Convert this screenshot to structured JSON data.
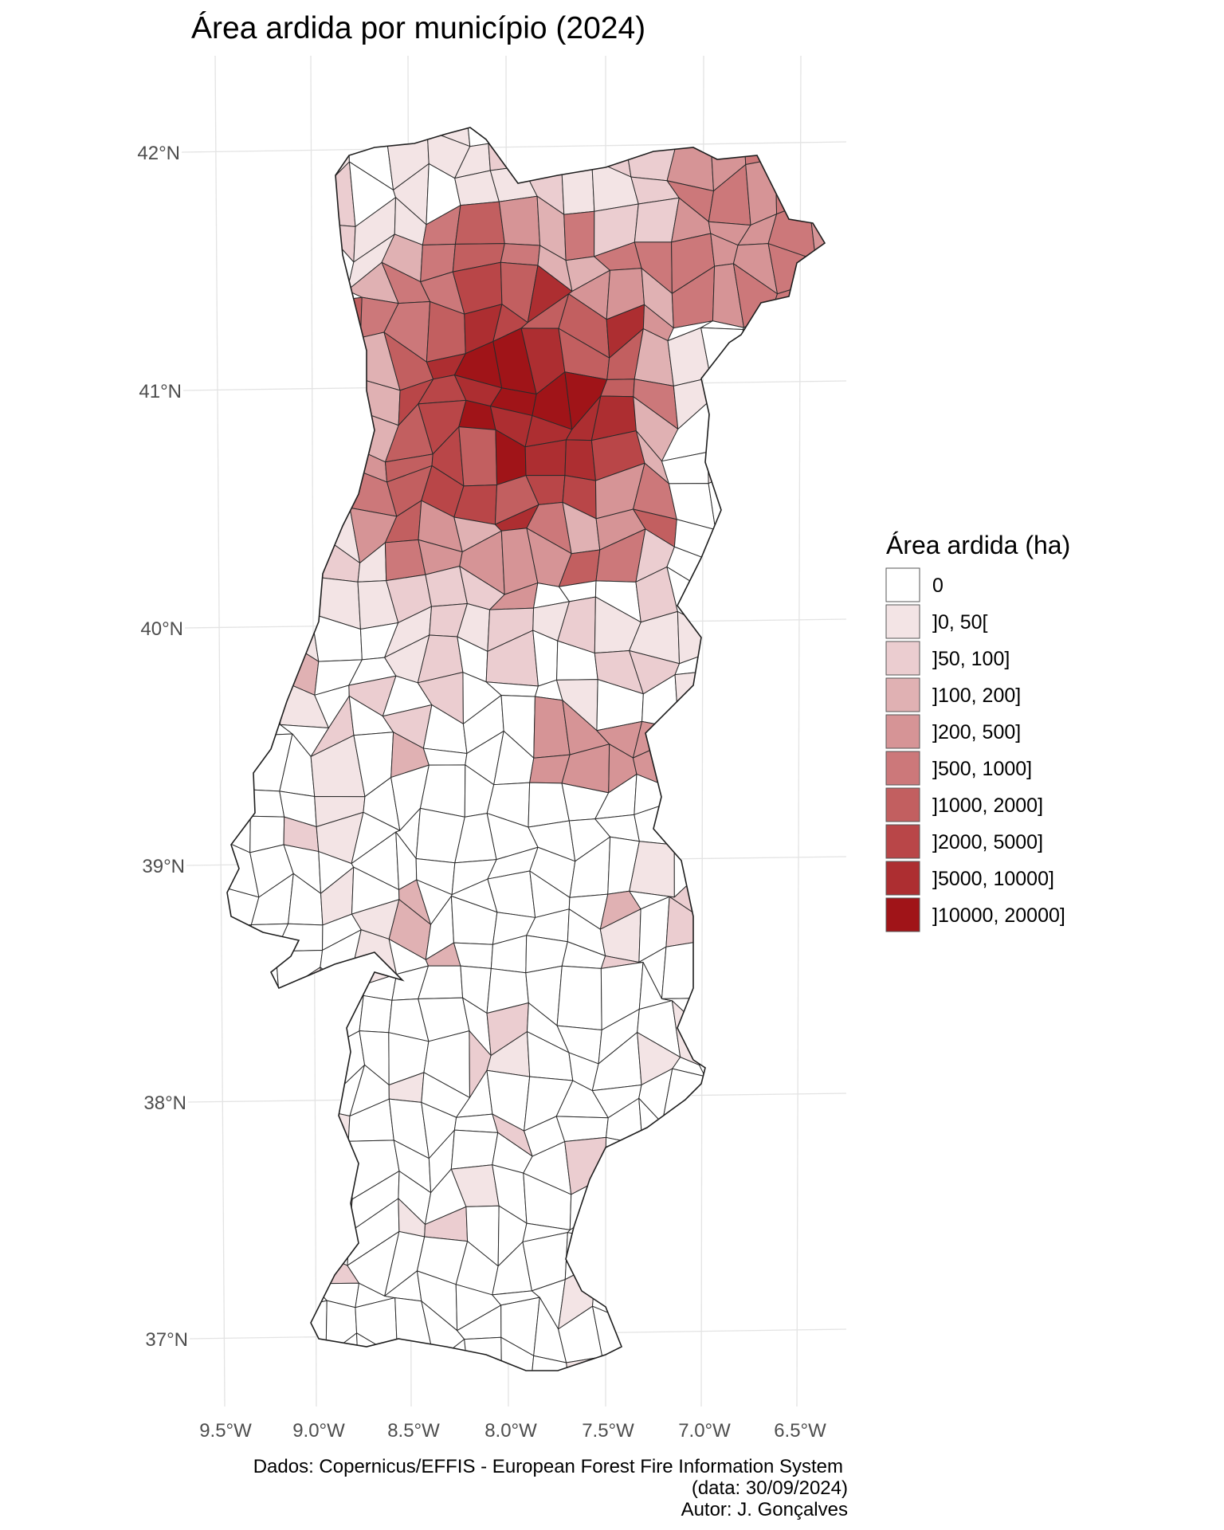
{
  "title": "Área ardida por município (2024)",
  "caption": {
    "line1": "Dados: Copernicus/EFFIS - European Forest Fire Information System",
    "line2": "(data: 30/09/2024)",
    "line3": "Autor: J. Gonçalves"
  },
  "axes": {
    "x_ticks": [
      "9.5°W",
      "9.0°W",
      "8.5°W",
      "8.0°W",
      "7.5°W",
      "7.0°W",
      "6.5°W"
    ],
    "y_ticks": [
      "42°N",
      "41°N",
      "40°N",
      "39°N",
      "38°N",
      "37°N"
    ]
  },
  "legend": {
    "title": "Área ardida (ha)",
    "classes": [
      {
        "label": "0",
        "color": "#ffffff"
      },
      {
        "label": "]0, 50[",
        "color": "#f3e4e5"
      },
      {
        "label": "]50, 100]",
        "color": "#ebcdd0"
      },
      {
        "label": "]100, 200]",
        "color": "#e0b1b3"
      },
      {
        "label": "]200, 500]",
        "color": "#d69496"
      },
      {
        "label": "]500, 1000]",
        "color": "#cc787a"
      },
      {
        "label": "]1000, 2000]",
        "color": "#c25f60"
      },
      {
        "label": "]2000, 5000]",
        "color": "#b94648"
      },
      {
        "label": "]5000, 10000]",
        "color": "#ad2e31"
      },
      {
        "label": "]10000, 20000]",
        "color": "#a01418"
      }
    ]
  },
  "municipality_classes": [
    9,
    8,
    7,
    8,
    6,
    8,
    7,
    7,
    5,
    6,
    4,
    3,
    4,
    2,
    2,
    1,
    5,
    4,
    3,
    2,
    1,
    6,
    5,
    3,
    2,
    1,
    1,
    3,
    2,
    1,
    2,
    4,
    3,
    1,
    2,
    1,
    1,
    1,
    4,
    5,
    3,
    6,
    7,
    5,
    6,
    2,
    1,
    1,
    1,
    1,
    2,
    1,
    3,
    3,
    2,
    2,
    1,
    1,
    1,
    1,
    2,
    1,
    1,
    1,
    1,
    2,
    1,
    1,
    3,
    2,
    1,
    1,
    1,
    6,
    5,
    3,
    7,
    8,
    4,
    2,
    3,
    4,
    5,
    6
  ]
}
